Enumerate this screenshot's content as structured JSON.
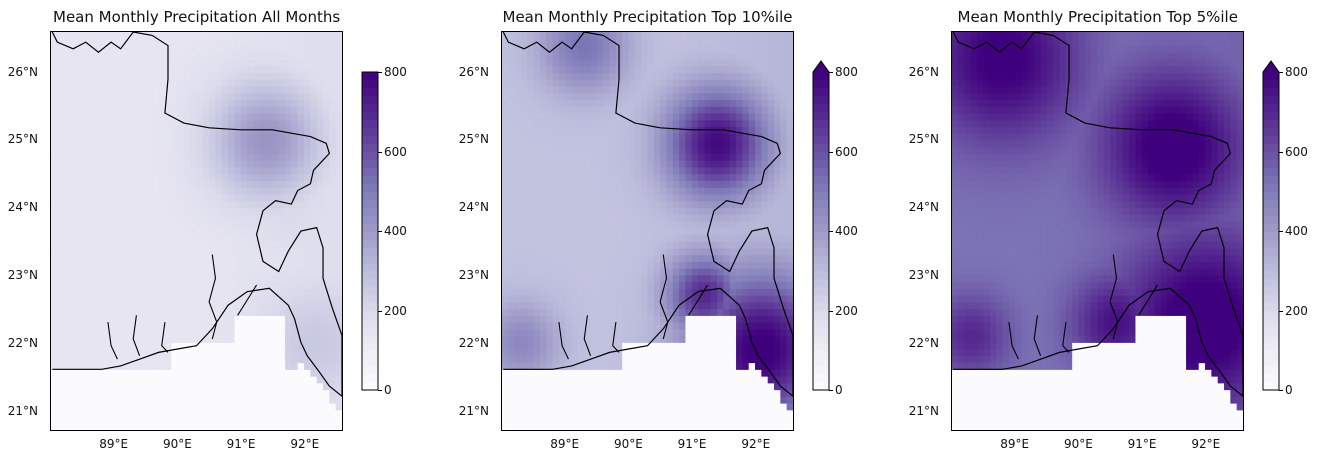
{
  "chart_data": [
    {
      "type": "heatmap",
      "title": "Mean Monthly Precipitation All Months",
      "colormap": "Purples",
      "extend": "neither",
      "xticks": [
        "89°E",
        "90°E",
        "91°E",
        "92°E"
      ],
      "yticks": [
        "26°N",
        "25°N",
        "24°N",
        "23°N",
        "22°N",
        "21°N"
      ],
      "xlim": [
        88.0,
        92.6
      ],
      "ylim": [
        20.7,
        26.6
      ],
      "colorbar": {
        "ticks": [
          "0",
          "200",
          "400",
          "600",
          "800"
        ],
        "range": [
          0,
          800
        ]
      },
      "base_value": 140,
      "hotspots": [
        {
          "lon": 91.4,
          "lat": 25.0,
          "value": 420,
          "radius_deg": 0.9
        },
        {
          "lon": 92.2,
          "lat": 22.0,
          "value": 260,
          "radius_deg": 1.0
        },
        {
          "lon": 91.8,
          "lat": 24.0,
          "value": 200,
          "radius_deg": 0.8
        }
      ]
    },
    {
      "type": "heatmap",
      "title": "Mean Monthly Precipitation Top 10%ile",
      "colormap": "Purples",
      "extend": "max",
      "xticks": [
        "89°E",
        "90°E",
        "91°E",
        "92°E"
      ],
      "yticks": [
        "26°N",
        "25°N",
        "24°N",
        "23°N",
        "22°N",
        "21°N"
      ],
      "xlim": [
        88.0,
        92.6
      ],
      "ylim": [
        20.7,
        26.6
      ],
      "colorbar": {
        "ticks": [
          "0",
          "200",
          "400",
          "600",
          "800"
        ],
        "range": [
          0,
          800
        ]
      },
      "base_value": 280,
      "hotspots": [
        {
          "lon": 91.4,
          "lat": 24.95,
          "value": 780,
          "radius_deg": 0.8
        },
        {
          "lon": 89.3,
          "lat": 26.4,
          "value": 520,
          "radius_deg": 0.7
        },
        {
          "lon": 92.1,
          "lat": 21.9,
          "value": 820,
          "radius_deg": 1.1
        },
        {
          "lon": 91.2,
          "lat": 22.7,
          "value": 700,
          "radius_deg": 0.6
        },
        {
          "lon": 88.3,
          "lat": 22.0,
          "value": 460,
          "radius_deg": 0.6
        }
      ]
    },
    {
      "type": "heatmap",
      "title": "Mean Monthly Precipitation Top 5%ile",
      "colormap": "Purples",
      "extend": "max",
      "xticks": [
        "89°E",
        "90°E",
        "91°E",
        "92°E"
      ],
      "yticks": [
        "26°N",
        "25°N",
        "24°N",
        "23°N",
        "22°N",
        "21°N"
      ],
      "xlim": [
        88.0,
        92.6
      ],
      "ylim": [
        20.7,
        26.6
      ],
      "colorbar": {
        "ticks": [
          "0",
          "200",
          "400",
          "600",
          "800"
        ],
        "range": [
          0,
          800
        ]
      },
      "base_value": 520,
      "hotspots": [
        {
          "lon": 88.8,
          "lat": 26.2,
          "value": 820,
          "radius_deg": 1.2
        },
        {
          "lon": 91.5,
          "lat": 24.9,
          "value": 850,
          "radius_deg": 1.1
        },
        {
          "lon": 92.0,
          "lat": 22.3,
          "value": 860,
          "radius_deg": 1.3
        },
        {
          "lon": 90.6,
          "lat": 22.3,
          "value": 760,
          "radius_deg": 0.7
        },
        {
          "lon": 88.3,
          "lat": 22.1,
          "value": 700,
          "radius_deg": 0.6
        }
      ]
    }
  ]
}
